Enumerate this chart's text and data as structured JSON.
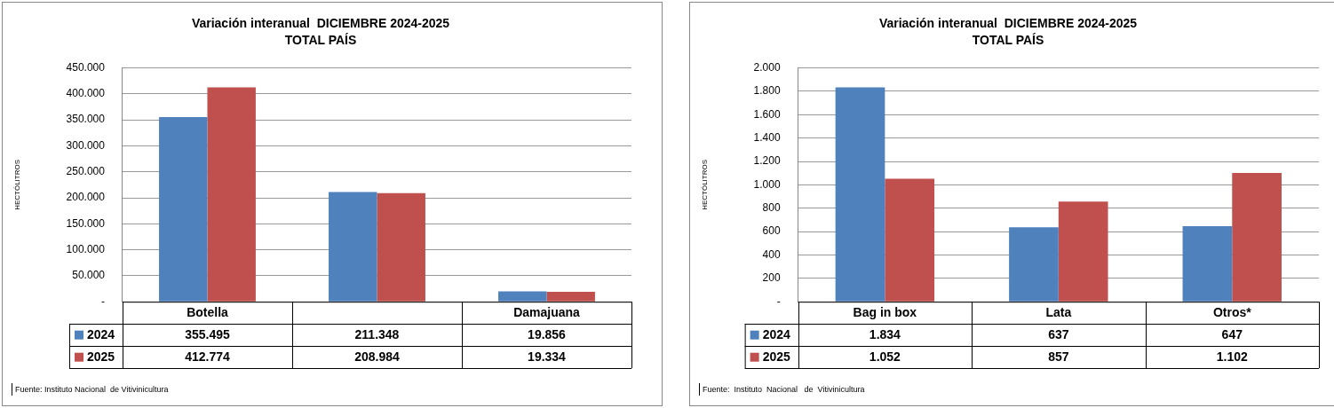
{
  "chart_data": [
    {
      "type": "bar",
      "title": "Variación interanual  DICIEMBRE 2024-2025",
      "subtitle": "TOTAL PAÍS",
      "ylabel": "HECTÓLITROS",
      "categories": [
        "Botella",
        null,
        "Damajuana"
      ],
      "series": [
        {
          "name": "2024",
          "color": "#4f81bd",
          "values": [
            355495,
            211348,
            19856
          ],
          "value_labels": [
            "355.495",
            "211.348",
            "19.856"
          ]
        },
        {
          "name": "2025",
          "color": "#c0504d",
          "values": [
            412774,
            208984,
            19334
          ],
          "value_labels": [
            "412.774",
            "208.984",
            "19.334"
          ]
        }
      ],
      "ylim": [
        0,
        450000
      ],
      "yticks": [
        {
          "value": 0,
          "label": "-"
        },
        {
          "value": 50000,
          "label": "50.000"
        },
        {
          "value": 100000,
          "label": "100.000"
        },
        {
          "value": 150000,
          "label": "150.000"
        },
        {
          "value": 200000,
          "label": "200.000"
        },
        {
          "value": 250000,
          "label": "250.000"
        },
        {
          "value": 300000,
          "label": "300.000"
        },
        {
          "value": 350000,
          "label": "350.000"
        },
        {
          "value": 400000,
          "label": "400.000"
        },
        {
          "value": 450000,
          "label": "450.000"
        }
      ],
      "grid": "y",
      "legend": "bottom left",
      "annotations": [
        "Fuente: Instituto Nacional  de Vitivinicultura"
      ]
    },
    {
      "type": "bar",
      "title": "Variación interanual  DICIEMBRE 2024-2025",
      "subtitle": "TOTAL PAÍS",
      "ylabel": "HECTÓLITROS",
      "categories": [
        "Bag in box",
        "Lata",
        "Otros*"
      ],
      "series": [
        {
          "name": "2024",
          "color": "#4f81bd",
          "values": [
            1834,
            637,
            647
          ],
          "value_labels": [
            "1.834",
            "637",
            "647"
          ]
        },
        {
          "name": "2025",
          "color": "#c0504d",
          "values": [
            1052,
            857,
            1102
          ],
          "value_labels": [
            "1.052",
            "857",
            "1.102"
          ]
        }
      ],
      "ylim": [
        0,
        2000
      ],
      "yticks": [
        {
          "value": 0,
          "label": "-"
        },
        {
          "value": 200,
          "label": "200"
        },
        {
          "value": 400,
          "label": "400"
        },
        {
          "value": 600,
          "label": "600"
        },
        {
          "value": 800,
          "label": "800"
        },
        {
          "value": 1000,
          "label": "1.000"
        },
        {
          "value": 1200,
          "label": "1.200"
        },
        {
          "value": 1400,
          "label": "1.400"
        },
        {
          "value": 1600,
          "label": "1.600"
        },
        {
          "value": 1800,
          "label": "1.800"
        },
        {
          "value": 2000,
          "label": "2.000"
        }
      ],
      "grid": "y",
      "legend": "bottom left",
      "annotations": [
        "Fuente:  Instituto  Nacional   de  Vitivinicultura"
      ]
    }
  ]
}
